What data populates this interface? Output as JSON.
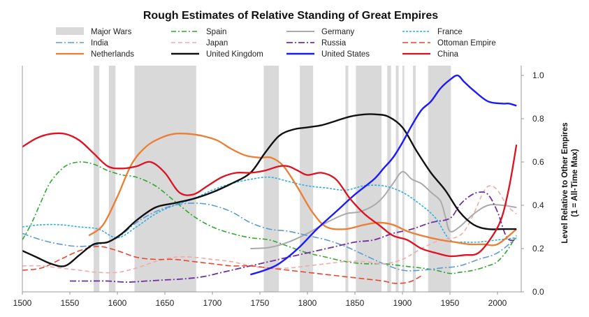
{
  "chart_data": {
    "type": "line",
    "title": "Rough Estimates of Relative Standing of Great Empires",
    "ylabel": "Level Relative to Other Empires",
    "ylabel2": "(1 = All-Time Max)",
    "xlim": [
      1500,
      2025
    ],
    "ylim": [
      0,
      1.05
    ],
    "x_ticks": [
      "1500",
      "1550",
      "1600",
      "1650",
      "1700",
      "1750",
      "1800",
      "1850",
      "1900",
      "1950",
      "2000"
    ],
    "y_ticks": [
      "0.0",
      "0.2",
      "0.4",
      "0.6",
      "0.8",
      "1.0"
    ],
    "y_axis_side": "right",
    "grid": false,
    "legend_position": "top",
    "major_wars_label": "Major Wars",
    "major_wars_color": "#d9d9d9",
    "major_wars": [
      [
        1575,
        1581
      ],
      [
        1591,
        1598
      ],
      [
        1618,
        1683
      ],
      [
        1754,
        1770
      ],
      [
        1792,
        1806
      ],
      [
        1840,
        1843
      ],
      [
        1851,
        1878
      ],
      [
        1884,
        1888
      ],
      [
        1893,
        1896
      ],
      [
        1900,
        1902
      ],
      [
        1911,
        1914
      ],
      [
        1927,
        1951
      ]
    ],
    "series": [
      {
        "name": "Spain",
        "color": "#2ea82e",
        "dash": "7,3,2,3",
        "width": 1.6,
        "x": [
          1500,
          1510,
          1520,
          1530,
          1545,
          1560,
          1575,
          1590,
          1605,
          1620,
          1640,
          1660,
          1680,
          1700,
          1720,
          1740,
          1760,
          1780,
          1800,
          1820,
          1840,
          1860,
          1880,
          1900,
          1920,
          1935,
          1950,
          1960,
          1975,
          1990,
          2000,
          2010,
          2020
        ],
        "y": [
          0.24,
          0.32,
          0.42,
          0.51,
          0.58,
          0.6,
          0.59,
          0.56,
          0.54,
          0.53,
          0.49,
          0.42,
          0.35,
          0.3,
          0.27,
          0.25,
          0.24,
          0.21,
          0.18,
          0.16,
          0.14,
          0.13,
          0.13,
          0.12,
          0.11,
          0.1,
          0.085,
          0.09,
          0.1,
          0.12,
          0.14,
          0.19,
          0.26
        ]
      },
      {
        "name": "Germany",
        "color": "#aaaaaa",
        "dash": "",
        "width": 2,
        "x": [
          1740,
          1760,
          1780,
          1800,
          1820,
          1840,
          1855,
          1870,
          1880,
          1890,
          1900,
          1910,
          1920,
          1930,
          1940,
          1945,
          1950,
          1960,
          1975,
          1990,
          2005,
          2020
        ],
        "y": [
          0.2,
          0.205,
          0.23,
          0.27,
          0.32,
          0.36,
          0.37,
          0.4,
          0.44,
          0.5,
          0.555,
          0.52,
          0.5,
          0.46,
          0.42,
          0.35,
          0.28,
          0.3,
          0.36,
          0.4,
          0.4,
          0.39
        ]
      },
      {
        "name": "France",
        "color": "#2aaee6",
        "dash": "3,2",
        "width": 1.6,
        "x": [
          1500,
          1520,
          1540,
          1560,
          1580,
          1600,
          1620,
          1640,
          1660,
          1680,
          1700,
          1720,
          1740,
          1760,
          1780,
          1800,
          1820,
          1840,
          1860,
          1880,
          1900,
          1920,
          1935,
          1950,
          1965,
          1980,
          2000,
          2020
        ],
        "y": [
          0.3,
          0.31,
          0.31,
          0.3,
          0.29,
          0.25,
          0.3,
          0.36,
          0.4,
          0.43,
          0.47,
          0.5,
          0.52,
          0.53,
          0.51,
          0.49,
          0.48,
          0.47,
          0.49,
          0.49,
          0.46,
          0.4,
          0.34,
          0.24,
          0.23,
          0.23,
          0.24,
          0.25
        ]
      },
      {
        "name": "India",
        "color": "#5b9bd5",
        "dash": "9,3,2,3",
        "width": 1.6,
        "x": [
          1500,
          1520,
          1540,
          1560,
          1580,
          1600,
          1620,
          1640,
          1660,
          1680,
          1700,
          1720,
          1740,
          1760,
          1780,
          1800,
          1820,
          1840,
          1860,
          1880,
          1900,
          1920,
          1940,
          1960,
          1980,
          2000,
          2020
        ],
        "y": [
          0.27,
          0.24,
          0.22,
          0.21,
          0.22,
          0.25,
          0.32,
          0.37,
          0.4,
          0.41,
          0.4,
          0.37,
          0.32,
          0.29,
          0.28,
          0.26,
          0.24,
          0.21,
          0.17,
          0.13,
          0.1,
          0.1,
          0.11,
          0.12,
          0.15,
          0.18,
          0.25
        ]
      },
      {
        "name": "Japan",
        "color": "#f4a9a8",
        "dash": "6,4",
        "width": 1.6,
        "x": [
          1500,
          1520,
          1540,
          1560,
          1580,
          1600,
          1620,
          1640,
          1660,
          1680,
          1700,
          1720,
          1740,
          1760,
          1780,
          1800,
          1820,
          1840,
          1860,
          1880,
          1900,
          1920,
          1940,
          1955,
          1965,
          1975,
          1985,
          1992,
          2000,
          2010,
          2020
        ],
        "y": [
          0.12,
          0.12,
          0.11,
          0.1,
          0.09,
          0.09,
          0.11,
          0.14,
          0.16,
          0.16,
          0.15,
          0.14,
          0.12,
          0.11,
          0.11,
          0.12,
          0.13,
          0.14,
          0.14,
          0.13,
          0.15,
          0.2,
          0.24,
          0.25,
          0.28,
          0.36,
          0.46,
          0.49,
          0.47,
          0.4,
          0.36
        ]
      },
      {
        "name": "Russia",
        "color": "#7030a0",
        "dash": "9,3,2,3",
        "width": 1.8,
        "x": [
          1550,
          1570,
          1590,
          1610,
          1630,
          1650,
          1670,
          1690,
          1710,
          1730,
          1750,
          1770,
          1790,
          1810,
          1830,
          1850,
          1870,
          1890,
          1910,
          1930,
          1950,
          1960,
          1970,
          1980,
          1990,
          2000,
          2010,
          2020
        ],
        "y": [
          0.05,
          0.05,
          0.05,
          0.045,
          0.05,
          0.055,
          0.06,
          0.07,
          0.09,
          0.11,
          0.13,
          0.15,
          0.17,
          0.19,
          0.21,
          0.23,
          0.24,
          0.27,
          0.29,
          0.32,
          0.34,
          0.4,
          0.44,
          0.46,
          0.45,
          0.37,
          0.25,
          0.24
        ]
      },
      {
        "name": "Ottoman Empire",
        "color": "#e8462e",
        "dash": "8,4",
        "width": 1.6,
        "x": [
          1500,
          1520,
          1540,
          1560,
          1580,
          1600,
          1620,
          1640,
          1660,
          1680,
          1700,
          1720,
          1740,
          1760,
          1780,
          1800,
          1820,
          1840,
          1860,
          1880,
          1890,
          1900,
          1910,
          1922
        ],
        "y": [
          0.1,
          0.11,
          0.15,
          0.19,
          0.21,
          0.19,
          0.16,
          0.15,
          0.15,
          0.14,
          0.13,
          0.12,
          0.12,
          0.11,
          0.1,
          0.09,
          0.08,
          0.07,
          0.06,
          0.05,
          0.04,
          0.04,
          0.05,
          0.08
        ]
      },
      {
        "name": "Netherlands",
        "color": "#ed7d31",
        "dash": "",
        "width": 2.3,
        "x": [
          1570,
          1585,
          1600,
          1615,
          1630,
          1645,
          1660,
          1675,
          1690,
          1705,
          1720,
          1735,
          1750,
          1762,
          1775,
          1790,
          1805,
          1820,
          1840,
          1860,
          1875,
          1890,
          1905,
          1920,
          1940,
          1955,
          1970,
          1985,
          2000,
          2020
        ],
        "y": [
          0.26,
          0.31,
          0.44,
          0.59,
          0.67,
          0.71,
          0.73,
          0.73,
          0.72,
          0.7,
          0.66,
          0.63,
          0.62,
          0.62,
          0.58,
          0.48,
          0.37,
          0.3,
          0.29,
          0.31,
          0.32,
          0.31,
          0.28,
          0.26,
          0.24,
          0.23,
          0.22,
          0.22,
          0.22,
          0.29
        ]
      },
      {
        "name": "United Kingdom",
        "color": "#111111",
        "dash": "",
        "width": 2.4,
        "x": [
          1500,
          1515,
          1530,
          1545,
          1560,
          1575,
          1590,
          1605,
          1620,
          1640,
          1660,
          1680,
          1700,
          1720,
          1740,
          1755,
          1770,
          1785,
          1800,
          1815,
          1830,
          1845,
          1860,
          1872,
          1885,
          1900,
          1915,
          1930,
          1945,
          1960,
          1975,
          1990,
          2005,
          2020
        ],
        "y": [
          0.19,
          0.16,
          0.13,
          0.12,
          0.17,
          0.22,
          0.23,
          0.27,
          0.33,
          0.39,
          0.41,
          0.43,
          0.46,
          0.5,
          0.55,
          0.64,
          0.72,
          0.75,
          0.76,
          0.77,
          0.79,
          0.81,
          0.82,
          0.82,
          0.81,
          0.76,
          0.65,
          0.55,
          0.47,
          0.37,
          0.31,
          0.29,
          0.29,
          0.29
        ]
      },
      {
        "name": "United States",
        "color": "#1a1aff",
        "dash": "",
        "width": 2.4,
        "x": [
          1740,
          1755,
          1770,
          1790,
          1810,
          1830,
          1850,
          1870,
          1880,
          1890,
          1900,
          1910,
          1920,
          1930,
          1940,
          1950,
          1958,
          1965,
          1975,
          1990,
          2005,
          2012,
          2020
        ],
        "y": [
          0.08,
          0.1,
          0.13,
          0.2,
          0.29,
          0.37,
          0.45,
          0.52,
          0.57,
          0.62,
          0.69,
          0.77,
          0.84,
          0.88,
          0.94,
          0.98,
          1.0,
          0.97,
          0.93,
          0.88,
          0.87,
          0.87,
          0.86
        ]
      },
      {
        "name": "China",
        "color": "#e01020",
        "dash": "",
        "width": 2.3,
        "x": [
          1500,
          1515,
          1530,
          1545,
          1560,
          1575,
          1590,
          1605,
          1620,
          1635,
          1650,
          1665,
          1680,
          1695,
          1710,
          1725,
          1740,
          1755,
          1770,
          1780,
          1790,
          1800,
          1815,
          1830,
          1845,
          1860,
          1875,
          1890,
          1905,
          1920,
          1935,
          1950,
          1965,
          1980,
          1995,
          2005,
          2013,
          2020
        ],
        "y": [
          0.67,
          0.71,
          0.73,
          0.73,
          0.7,
          0.64,
          0.58,
          0.57,
          0.58,
          0.6,
          0.55,
          0.46,
          0.45,
          0.49,
          0.53,
          0.55,
          0.55,
          0.56,
          0.58,
          0.58,
          0.56,
          0.54,
          0.55,
          0.52,
          0.43,
          0.36,
          0.31,
          0.26,
          0.24,
          0.2,
          0.18,
          0.165,
          0.17,
          0.18,
          0.26,
          0.35,
          0.5,
          0.68
        ]
      }
    ]
  }
}
